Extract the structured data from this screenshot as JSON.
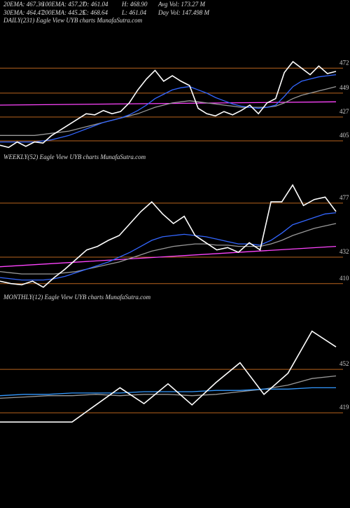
{
  "header": {
    "stats": [
      "20EMA: 467.36",
      "100EMA: 457.27",
      "O: 461.04",
      "H: 468.90",
      "Avg Vol: 173.27 M",
      "30EMA: 464.47",
      "200EMA: 445.25",
      "C: 468.64",
      "L: 461.04",
      "Day Vol: 147.498 M"
    ]
  },
  "chart_data": [
    {
      "type": "line",
      "title": "DAILY(231) Eagle  View  UYB charts MunafaSutra.com",
      "ylim": [
        396,
        509
      ],
      "yticks": [
        405,
        427,
        449,
        472
      ],
      "grid_color": "#b8641e",
      "series": [
        {
          "color": "#ff44ff",
          "values": [
            438,
            441
          ]
        },
        {
          "color": "#999999",
          "values": [
            410,
            410,
            410,
            410,
            410,
            411,
            412,
            413,
            414,
            416,
            418,
            420,
            422,
            424,
            426,
            428,
            430,
            433,
            436,
            438,
            440,
            441,
            442,
            441,
            440,
            439,
            438,
            437,
            436,
            436,
            436,
            436,
            437,
            440,
            444,
            447,
            449,
            451,
            453,
            455
          ]
        },
        {
          "color": "#3366ff",
          "values": [
            404,
            404,
            404,
            404,
            404,
            405,
            406,
            408,
            410,
            413,
            416,
            419,
            422,
            424,
            426,
            429,
            433,
            438,
            444,
            448,
            452,
            454,
            455,
            452,
            449,
            445,
            442,
            439,
            437,
            436,
            435,
            436,
            438,
            446,
            455,
            460,
            462,
            464,
            465,
            466
          ]
        },
        {
          "color": "#ffffff",
          "values": [
            401,
            399,
            404,
            400,
            404,
            403,
            410,
            415,
            420,
            425,
            430,
            429,
            433,
            430,
            432,
            440,
            452,
            462,
            470,
            460,
            465,
            460,
            456,
            435,
            430,
            428,
            432,
            429,
            433,
            438,
            430,
            440,
            444,
            468,
            478,
            472,
            466,
            474,
            467,
            469
          ]
        }
      ]
    },
    {
      "type": "line",
      "title": "WEEKLY(52) Eagle  View  UYB charts MunafaSutra.com",
      "ylim": [
        404,
        509
      ],
      "yticks": [
        410,
        432,
        477
      ],
      "grid_color": "#b8641e",
      "series": [
        {
          "color": "#ff44ff",
          "values": [
            424,
            441
          ]
        },
        {
          "color": "#999999",
          "values": [
            420,
            419,
            418,
            418,
            418,
            418,
            419,
            420,
            422,
            424,
            426,
            428,
            431,
            434,
            437,
            439,
            441,
            442,
            443,
            443,
            442,
            442,
            441,
            441,
            441,
            443,
            446,
            450,
            453,
            456,
            458,
            460
          ]
        },
        {
          "color": "#3366ff",
          "values": [
            415,
            414,
            413,
            413,
            413,
            414,
            416,
            419,
            422,
            425,
            428,
            432,
            436,
            441,
            446,
            449,
            450,
            451,
            450,
            449,
            447,
            445,
            443,
            443,
            442,
            446,
            452,
            459,
            462,
            465,
            468,
            469
          ]
        },
        {
          "color": "#ffffff",
          "values": [
            412,
            410,
            409,
            412,
            407,
            415,
            422,
            430,
            438,
            441,
            446,
            450,
            460,
            470,
            478,
            468,
            460,
            466,
            450,
            444,
            438,
            440,
            436,
            444,
            438,
            478,
            478,
            492,
            475,
            480,
            482,
            470
          ]
        }
      ]
    },
    {
      "type": "line",
      "title": "MONTHLY(12) Eagle  View  UYB charts MunafaSutra.com",
      "ylim": [
        360,
        501
      ],
      "yticks": [
        419,
        452
      ],
      "grid_color": "#b8641e",
      "series": [
        {
          "color": "#999999",
          "values": [
            430,
            431,
            432,
            432,
            433,
            432,
            433,
            433,
            432,
            433,
            435,
            437,
            440,
            445,
            447
          ]
        },
        {
          "color": "#3399ff",
          "values": [
            432,
            433,
            433,
            434,
            434,
            434,
            435,
            435,
            435,
            436,
            436,
            437,
            437,
            438,
            438
          ]
        },
        {
          "color": "#ffffff",
          "values": [
            412,
            412,
            412,
            412,
            425,
            438,
            426,
            441,
            425,
            442,
            457,
            433,
            449,
            481,
            469
          ]
        }
      ]
    }
  ]
}
